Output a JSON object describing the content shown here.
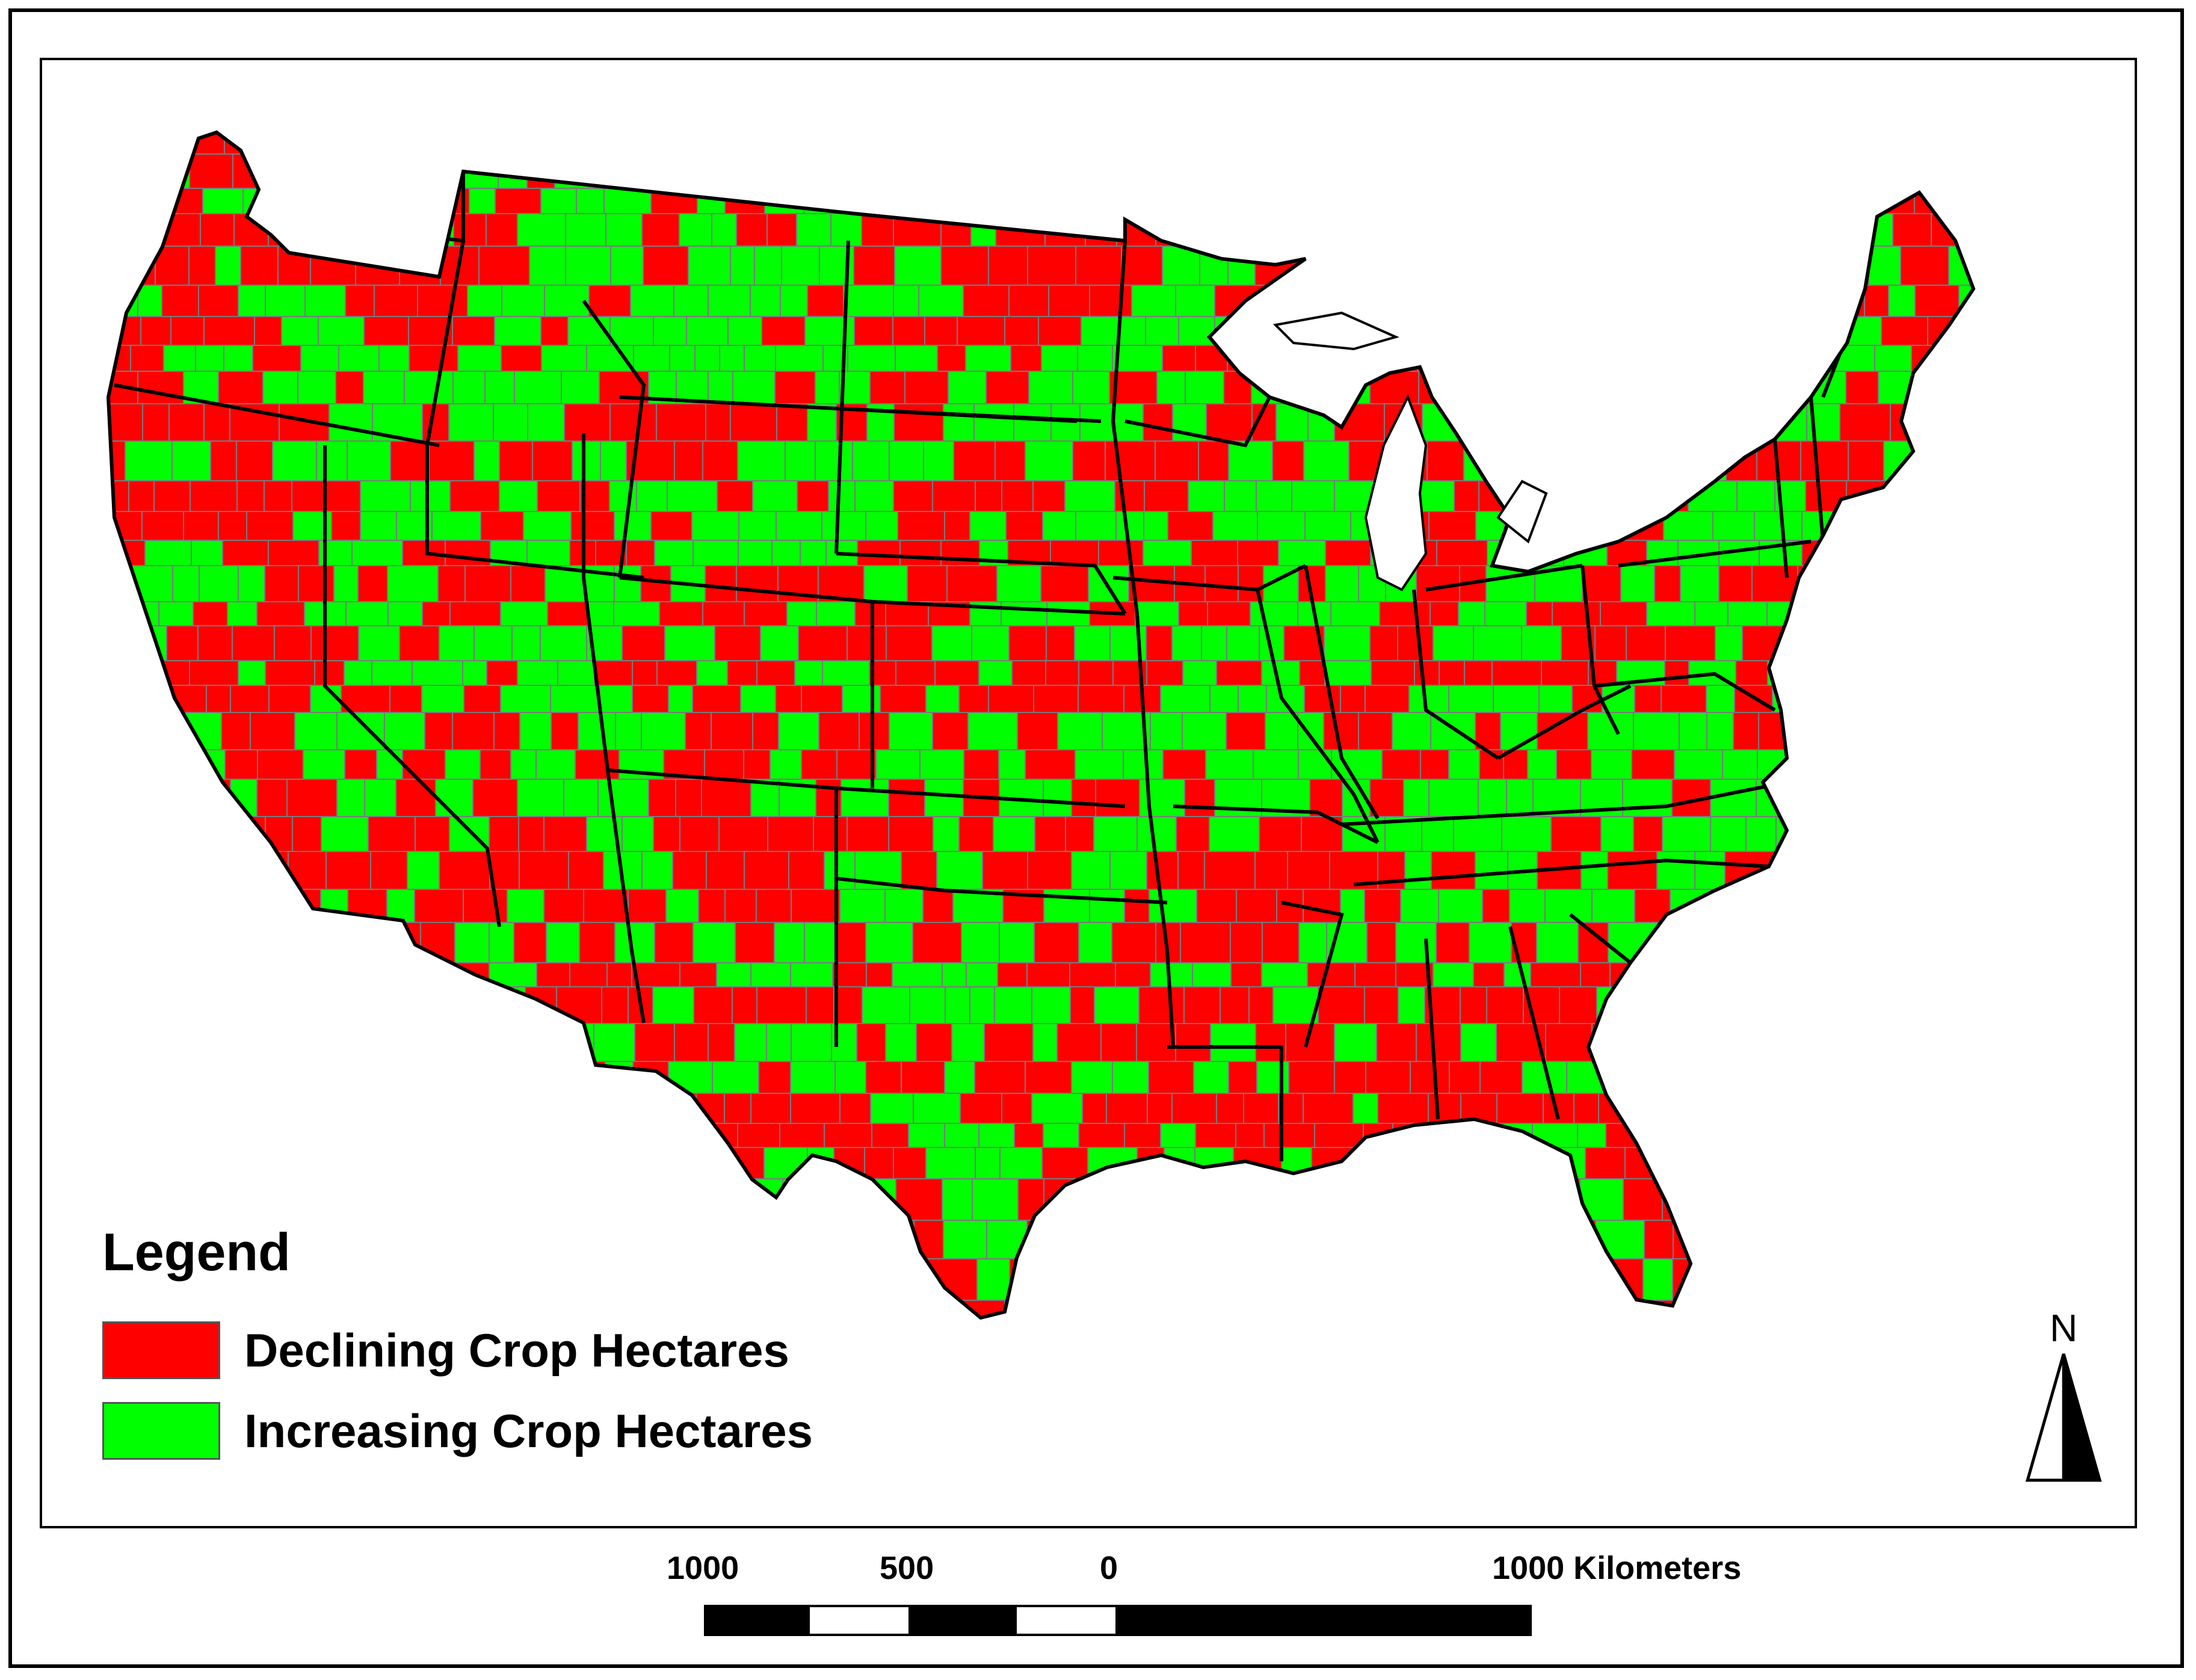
{
  "legend": {
    "title": "Legend",
    "items": [
      {
        "label": "Declining Crop Hectares",
        "color": "#ff0000"
      },
      {
        "label": "Increasing Crop Hectares",
        "color": "#00ff00"
      }
    ]
  },
  "north_arrow": {
    "label": "N"
  },
  "scale_bar": {
    "labels": [
      "1000",
      "500",
      "0",
      "1000 Kilometers"
    ],
    "unit": "Kilometers"
  },
  "colors": {
    "declining": "#ff0000",
    "increasing": "#00ff00",
    "county_border": "#7a7a7a",
    "state_border": "#000000"
  }
}
